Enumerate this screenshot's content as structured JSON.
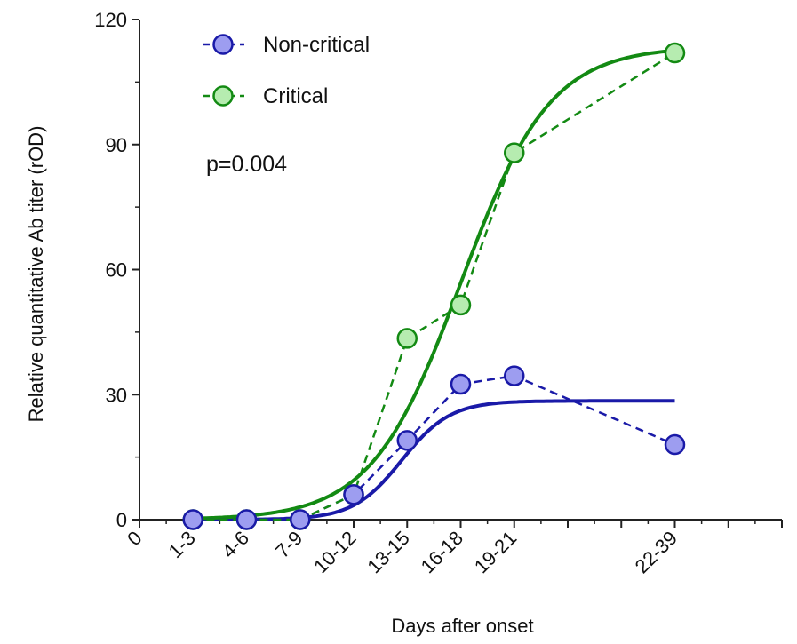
{
  "chart_data": {
    "type": "line",
    "xlabel": "Days after onset",
    "ylabel": "Relative quantitative Ab titer (rOD)",
    "xlim": [
      0,
      12
    ],
    "ylim": [
      0,
      120
    ],
    "yticks": [
      0,
      30,
      60,
      90,
      120
    ],
    "x_zero_label": "0",
    "categories": [
      {
        "label": "1-3",
        "x": 1
      },
      {
        "label": "4-6",
        "x": 2
      },
      {
        "label": "7-9",
        "x": 3
      },
      {
        "label": "10-12",
        "x": 4
      },
      {
        "label": "13-15",
        "x": 5
      },
      {
        "label": "16-18",
        "x": 6
      },
      {
        "label": "19-21",
        "x": 7
      },
      {
        "label": "22-39",
        "x": 10
      }
    ],
    "series": [
      {
        "name": "Non-critical",
        "color": "#1a1aa8",
        "marker_fill": "#9d9df0",
        "x": [
          1,
          2,
          3,
          4,
          5,
          6,
          7,
          10
        ],
        "values": [
          0,
          0,
          0,
          6,
          19,
          32.5,
          34.5,
          18
        ],
        "fit_max": 28.5,
        "fit_mid": 4.9,
        "fit_k": 2.2
      },
      {
        "name": "Critical",
        "color": "#138a13",
        "marker_fill": "#b6ecb0",
        "x": [
          1,
          2,
          3,
          4,
          5,
          6,
          7,
          10
        ],
        "values": [
          0,
          0,
          0,
          6,
          43.5,
          51.5,
          88,
          112
        ],
        "fit_max": 113.5,
        "fit_mid": 6.0,
        "fit_k": 1.2
      }
    ],
    "annotations": [
      "p=0.004"
    ],
    "legend_position": "top-left",
    "grid": false
  }
}
